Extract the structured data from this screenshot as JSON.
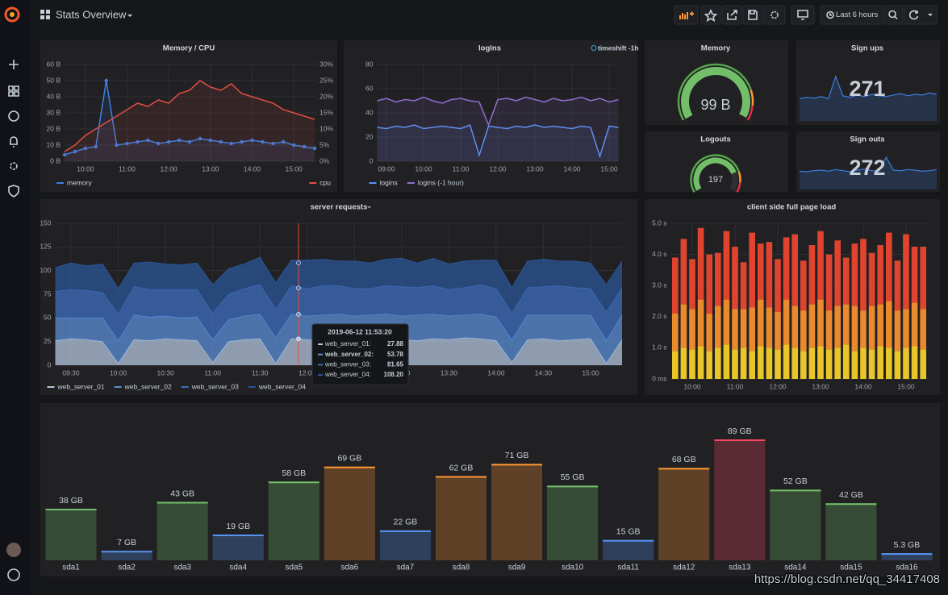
{
  "header": {
    "title": "Stats Overview",
    "time_range": "Last 6 hours"
  },
  "watermark": "https://blog.csdn.net/qq_34417408",
  "chart_data": [
    {
      "type": "line",
      "title": "Memory / CPU",
      "grid": true,
      "legend": "bottom",
      "x": [
        "09:30",
        "09:45",
        "10:00",
        "10:15",
        "10:30",
        "10:45",
        "11:00",
        "11:15",
        "11:30",
        "11:45",
        "12:00",
        "12:15",
        "12:30",
        "12:45",
        "13:00",
        "13:15",
        "13:30",
        "13:45",
        "14:00",
        "14:15",
        "14:30",
        "14:45",
        "15:00",
        "15:15",
        "15:30"
      ],
      "xticks": [
        "10:00",
        "11:00",
        "12:00",
        "13:00",
        "14:00",
        "15:00"
      ],
      "ylim": [
        0,
        60
      ],
      "yticks": [
        {
          "value": 0,
          "label": "0 B"
        },
        {
          "value": 10,
          "label": "10 B"
        },
        {
          "value": 20,
          "label": "20 B"
        },
        {
          "value": 30,
          "label": "30 B"
        },
        {
          "value": 40,
          "label": "40 B"
        },
        {
          "value": 50,
          "label": "50 B"
        },
        {
          "value": 60,
          "label": "60 B"
        }
      ],
      "y2lim": [
        0,
        30
      ],
      "y2ticks": [
        {
          "value": 0,
          "label": "0%"
        },
        {
          "value": 5,
          "label": "5%"
        },
        {
          "value": 10,
          "label": "10%"
        },
        {
          "value": 15,
          "label": "15%"
        },
        {
          "value": 20,
          "label": "20%"
        },
        {
          "value": 25,
          "label": "25%"
        },
        {
          "value": 30,
          "label": "30%"
        }
      ],
      "series": [
        {
          "name": "memory",
          "color": "#3d7fe0",
          "points": true,
          "values": [
            4,
            6,
            8,
            9,
            50,
            10,
            11,
            12,
            13,
            11,
            12,
            13,
            12,
            14,
            13,
            12,
            11,
            12,
            13,
            12,
            11,
            12,
            10,
            9,
            8
          ]
        },
        {
          "name": "cpu",
          "color": "#e24d42",
          "axis": "y2",
          "values": [
            3,
            5,
            8,
            10,
            12,
            14,
            16,
            18,
            17,
            19,
            18,
            21,
            22,
            25,
            23,
            22,
            24,
            21,
            20,
            19,
            18,
            16,
            15,
            14,
            13
          ]
        }
      ]
    },
    {
      "type": "line",
      "title": "logins",
      "annotation": "timeshift -1h",
      "grid": true,
      "legend": "bottom",
      "x": [
        "08:45",
        "09:00",
        "09:15",
        "09:30",
        "09:45",
        "10:00",
        "10:15",
        "10:30",
        "10:45",
        "11:00",
        "11:15",
        "11:30",
        "11:45",
        "12:00",
        "12:15",
        "12:30",
        "12:45",
        "13:00",
        "13:15",
        "13:30",
        "13:45",
        "14:00",
        "14:15",
        "14:30",
        "14:45",
        "15:00",
        "15:15"
      ],
      "xticks": [
        "09:00",
        "10:00",
        "11:00",
        "12:00",
        "13:00",
        "14:00",
        "15:00"
      ],
      "ylim": [
        0,
        80
      ],
      "yticks": [
        0,
        20,
        40,
        60,
        80
      ],
      "series": [
        {
          "name": "logins",
          "color": "#5794f2",
          "values": [
            28,
            27,
            29,
            28,
            30,
            27,
            28,
            29,
            28,
            27,
            30,
            5,
            29,
            28,
            27,
            29,
            28,
            30,
            28,
            29,
            28,
            27,
            29,
            28,
            4,
            29,
            28
          ]
        },
        {
          "name": "logins (-1 hour)",
          "color": "#8f6fd0",
          "values": [
            50,
            52,
            49,
            51,
            50,
            53,
            50,
            48,
            51,
            52,
            50,
            49,
            30,
            51,
            52,
            50,
            53,
            51,
            49,
            52,
            50,
            51,
            53,
            50,
            52,
            49,
            51
          ]
        }
      ]
    },
    {
      "type": "gauge",
      "title": "Memory",
      "value": 99,
      "value_label": "99 B",
      "range": [
        0,
        100
      ],
      "color": "#73bf69"
    },
    {
      "type": "stat",
      "title": "Sign ups",
      "value": 271,
      "color": "#73bf69",
      "sparkline_color": "#3d7fe0",
      "sparkline": [
        30,
        32,
        31,
        33,
        30,
        60,
        34,
        32,
        35,
        33,
        36,
        34,
        33,
        35,
        37,
        34,
        36,
        35,
        38,
        36
      ]
    },
    {
      "type": "gauge",
      "title": "Logouts",
      "value": 197,
      "range": [
        0,
        250
      ],
      "color": "#73bf69"
    },
    {
      "type": "stat",
      "title": "Sign outs",
      "value": 272,
      "color": "#73bf69",
      "sparkline_color": "#3d7fe0",
      "sparkline": [
        34,
        33,
        35,
        36,
        34,
        37,
        35,
        33,
        36,
        38,
        35,
        34,
        60,
        36,
        35,
        37,
        36,
        34,
        35,
        37
      ]
    },
    {
      "type": "area",
      "title": "server requests",
      "stacked": true,
      "grid": true,
      "legend": "bottom",
      "x": [
        "09:20",
        "09:30",
        "09:40",
        "09:50",
        "10:00",
        "10:10",
        "10:20",
        "10:30",
        "10:40",
        "10:50",
        "11:00",
        "11:10",
        "11:20",
        "11:30",
        "11:40",
        "11:50",
        "12:00",
        "12:10",
        "12:20",
        "12:30",
        "12:40",
        "12:50",
        "13:00",
        "13:10",
        "13:20",
        "13:30",
        "13:40",
        "13:50",
        "14:00",
        "14:10",
        "14:20",
        "14:30",
        "14:40",
        "14:50",
        "15:00",
        "15:10",
        "15:20"
      ],
      "xticks": [
        "09:30",
        "10:00",
        "10:30",
        "11:00",
        "11:30",
        "12:00",
        "12:30",
        "13:00",
        "13:30",
        "14:00",
        "14:30",
        "15:00"
      ],
      "ylim": [
        0,
        150
      ],
      "yticks": [
        0,
        25,
        50,
        75,
        100,
        125,
        150
      ],
      "series": [
        {
          "name": "web_server_01",
          "color": "#b4c6de",
          "values": [
            26,
            28,
            27,
            25,
            2,
            27,
            26,
            28,
            27,
            26,
            3,
            25,
            27,
            28,
            2,
            28,
            27,
            26,
            28,
            27,
            29,
            28,
            27,
            26,
            28,
            27,
            29,
            28,
            26,
            3,
            27,
            28,
            26,
            27,
            28,
            2,
            27
          ]
        },
        {
          "name": "web_server_02",
          "color": "#5b8fd6",
          "values": [
            24,
            22,
            23,
            25,
            24,
            26,
            25,
            24,
            23,
            25,
            24,
            23,
            25,
            26,
            27,
            26,
            25,
            27,
            26,
            25,
            24,
            26,
            25,
            27,
            26,
            25,
            24,
            26,
            25,
            24,
            26,
            25,
            27,
            26,
            25,
            24,
            26
          ]
        },
        {
          "name": "web_server_03",
          "color": "#3f6fbf",
          "values": [
            28,
            30,
            29,
            27,
            28,
            30,
            29,
            28,
            30,
            29,
            28,
            27,
            29,
            31,
            30,
            30,
            29,
            31,
            30,
            29,
            28,
            30,
            31,
            29,
            30,
            28,
            29,
            31,
            30,
            28,
            29,
            30,
            31,
            29,
            28,
            30,
            29
          ]
        },
        {
          "name": "web_server_04",
          "color": "#2b5597",
          "values": [
            25,
            28,
            26,
            30,
            27,
            25,
            29,
            27,
            26,
            28,
            30,
            27,
            26,
            29,
            28,
            27,
            30,
            28,
            26,
            29,
            27,
            28,
            30,
            26,
            29,
            27,
            28,
            26,
            30,
            27,
            28,
            29,
            26,
            28,
            27,
            29,
            28
          ]
        }
      ],
      "tooltip": {
        "time": "2019-06-12 11:53:20",
        "labels": [
          "web_server_01:",
          "web_server_02:",
          "web_server_03:",
          "web_server_04:"
        ],
        "values": [
          27.88,
          53.78,
          81.65,
          108.2
        ],
        "value_labels": [
          "27.88",
          "53.78",
          "81.65",
          "108.20"
        ]
      }
    },
    {
      "type": "bar",
      "title": "client side full page load",
      "stacked": true,
      "grid": true,
      "x": [
        "09:36",
        "09:48",
        "10:00",
        "10:12",
        "10:24",
        "10:36",
        "10:48",
        "11:00",
        "11:12",
        "11:24",
        "11:36",
        "11:48",
        "12:00",
        "12:12",
        "12:24",
        "12:36",
        "12:48",
        "13:00",
        "13:12",
        "13:24",
        "13:36",
        "13:48",
        "14:00",
        "14:12",
        "14:24",
        "14:36",
        "14:48",
        "15:00",
        "15:12",
        "15:24"
      ],
      "xticks": [
        "10:00",
        "11:00",
        "12:00",
        "13:00",
        "14:00",
        "15:00"
      ],
      "ylim": [
        0,
        5
      ],
      "yticks": [
        {
          "value": 0,
          "label": "0 ms"
        },
        {
          "value": 1,
          "label": "1.0 s"
        },
        {
          "value": 2,
          "label": "2.0 s"
        },
        {
          "value": 3,
          "label": "3.0 s"
        },
        {
          "value": 4,
          "label": "4.0 s"
        },
        {
          "value": 5,
          "label": "5.0 s"
        }
      ],
      "series": [
        {
          "color": "#e8c62a",
          "values": [
            0.9,
            1.0,
            0.95,
            1.05,
            0.9,
            1.0,
            1.1,
            0.95,
            1.0,
            0.9,
            1.05,
            1.0,
            0.95,
            1.1,
            1.0,
            0.9,
            1.0,
            1.05,
            0.95,
            1.0,
            1.1,
            0.9,
            1.0,
            0.95,
            1.05,
            1.0,
            0.9,
            1.0,
            1.05,
            0.95
          ]
        },
        {
          "color": "#ea8a2c",
          "values": [
            1.2,
            1.4,
            1.3,
            1.5,
            1.2,
            1.35,
            1.45,
            1.3,
            1.25,
            1.4,
            1.5,
            1.3,
            1.2,
            1.45,
            1.35,
            1.3,
            1.4,
            1.5,
            1.25,
            1.35,
            1.3,
            1.45,
            1.2,
            1.4,
            1.35,
            1.5,
            1.3,
            1.25,
            1.4,
            1.3
          ]
        },
        {
          "color": "#e0442f",
          "values": [
            1.8,
            2.1,
            1.6,
            2.3,
            1.9,
            1.7,
            2.2,
            2.0,
            1.5,
            2.4,
            1.8,
            2.1,
            1.7,
            2.0,
            2.3,
            1.6,
            1.9,
            2.2,
            1.8,
            2.1,
            1.5,
            2.0,
            2.3,
            1.7,
            1.9,
            2.2,
            1.6,
            2.4,
            1.8,
            2.0
          ]
        }
      ]
    },
    {
      "type": "bargauge",
      "ylim": [
        0,
        100
      ],
      "categories": [
        "sda1",
        "sda2",
        "sda3",
        "sda4",
        "sda5",
        "sda6",
        "sda7",
        "sda8",
        "sda9",
        "sda10",
        "sda11",
        "sda12",
        "sda13",
        "sda14",
        "sda15",
        "sda16"
      ],
      "values": [
        38,
        7,
        43,
        19,
        58,
        69,
        22,
        62,
        71,
        55,
        15,
        68,
        89,
        52,
        42,
        5.3
      ],
      "value_labels": [
        "38 GB",
        "7 GB",
        "43 GB",
        "19 GB",
        "58 GB",
        "69 GB",
        "22 GB",
        "62 GB",
        "71 GB",
        "55 GB",
        "15 GB",
        "68 GB",
        "89 GB",
        "52 GB",
        "42 GB",
        "5.3 GB"
      ],
      "colors": [
        "#73bf69",
        "#5794f2",
        "#73bf69",
        "#5794f2",
        "#73bf69",
        "#ff9830",
        "#5794f2",
        "#ff9830",
        "#ff9830",
        "#73bf69",
        "#5794f2",
        "#ff9830",
        "#f2495c",
        "#73bf69",
        "#73bf69",
        "#5794f2"
      ]
    }
  ]
}
